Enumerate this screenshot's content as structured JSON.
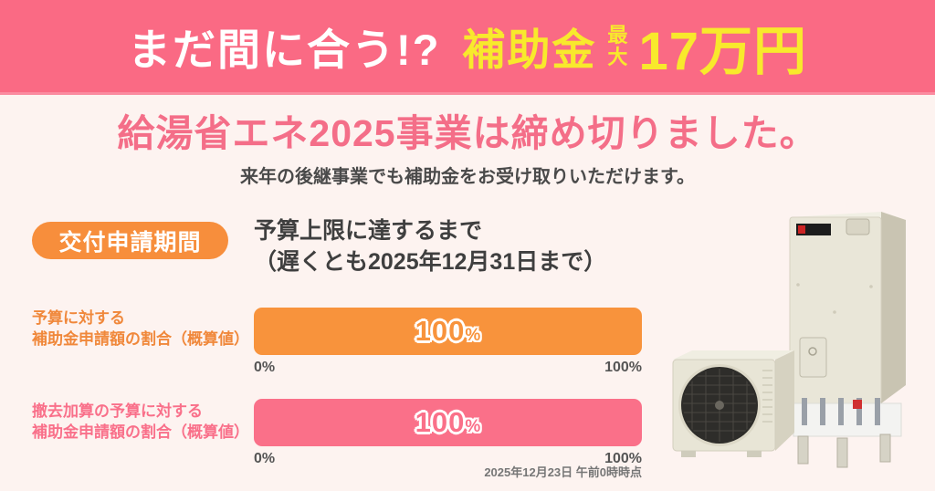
{
  "banner": {
    "catch": "まだ間に合う!?",
    "subsidy": "補助金",
    "max_top": "最",
    "max_bottom": "大",
    "amount": "17万円"
  },
  "main": {
    "title": "給湯省エネ2025事業は締め切りました。",
    "subtitle": "来年の後継事業でも補助金をお受け取りいただけます。",
    "period": {
      "badge": "交付申請期間",
      "line1": "予算上限に達するまで",
      "line2": "（遅くとも2025年12月31日まで）"
    },
    "meters": [
      {
        "label_line1": "予算に対する",
        "label_line2": "補助金申請額の割合（概算値）",
        "label_color": "#f0883b",
        "value": 100,
        "value_label": "100",
        "unit": "%",
        "scale_min": "0%",
        "scale_max": "100%",
        "color": "#f8933c"
      },
      {
        "label_line1": "撤去加算の予算に対する",
        "label_line2": "補助金申請額の割合（概算値）",
        "label_color": "#f9708a",
        "value": 100,
        "value_label": "100",
        "unit": "%",
        "scale_min": "0%",
        "scale_max": "100%",
        "color": "#fa7089"
      }
    ],
    "timestamp": "2025年12月23日 午前0時時点"
  },
  "product_illustration": "ecocute-heat-pump-water-heater-set",
  "chart_data": {
    "type": "bar",
    "categories": [
      "予算に対する補助金申請額の割合（概算値）",
      "撤去加算の予算に対する補助金申請額の割合（概算値）"
    ],
    "values": [
      100,
      100
    ],
    "unit": "%",
    "xlim": [
      0,
      100
    ],
    "as_of": "2025年12月23日 午前0時時点"
  },
  "colors": {
    "banner_background": "#fa6a84",
    "highlight_yellow": "#f8e92c",
    "page_background": "#fdf3f0",
    "title_pink": "#f46e88",
    "badge_orange": "#f78e3c",
    "bar_orange": "#f8933c",
    "bar_pink": "#fa7089"
  }
}
